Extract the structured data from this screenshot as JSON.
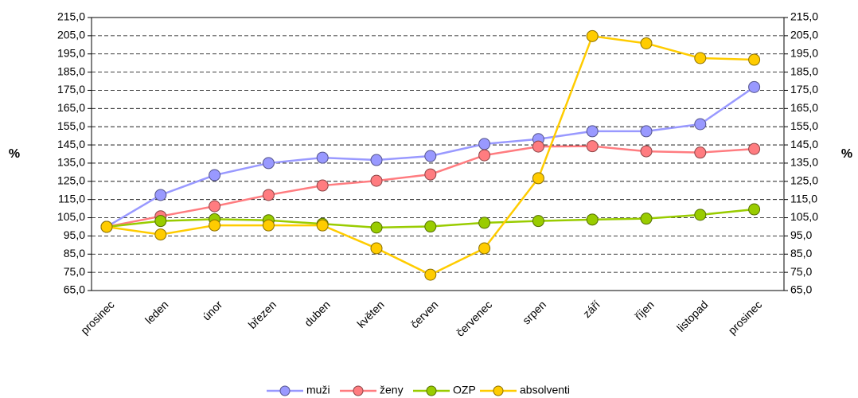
{
  "chart_data": {
    "type": "line",
    "y_label": "%",
    "y2_label": "%",
    "categories": [
      "prosinec",
      "leden",
      "únor",
      "březen",
      "duben",
      "květen",
      "červen",
      "červenec",
      "srpen",
      "září",
      "říjen",
      "listopad",
      "prosinec"
    ],
    "series": [
      {
        "name": "muži",
        "color": "#9999ff",
        "values": [
          100,
          117.5,
          128.4,
          135,
          138,
          136.7,
          138.9,
          145.5,
          148.2,
          152.5,
          152.5,
          156.4,
          176.8
        ]
      },
      {
        "name": "ženy",
        "color": "#ff7c80",
        "values": [
          100,
          105.8,
          111.3,
          117.5,
          122.7,
          125.3,
          128.8,
          139.3,
          144.1,
          144.3,
          141.5,
          140.8,
          142.8
        ]
      },
      {
        "name": "OZP",
        "color": "#99cc00",
        "values": [
          100,
          103.2,
          104.2,
          103.6,
          101.6,
          99.6,
          100.2,
          102.2,
          103.2,
          104,
          104.5,
          106.6,
          109.6
        ]
      },
      {
        "name": "absolventi",
        "color": "#ffcc00",
        "values": [
          100,
          95.8,
          100.8,
          100.8,
          100.8,
          88.2,
          73.7,
          88.2,
          126.7,
          204.8,
          200.8,
          192.7,
          191.8
        ]
      }
    ],
    "ylim": [
      65,
      215
    ],
    "yticks": [
      {
        "value": 65,
        "label": "65,0"
      },
      {
        "value": 75,
        "label": "75,0"
      },
      {
        "value": 85,
        "label": "85,0"
      },
      {
        "value": 95,
        "label": "95,0"
      },
      {
        "value": 105,
        "label": "105,0"
      },
      {
        "value": 115,
        "label": "115,0"
      },
      {
        "value": 125,
        "label": "125,0"
      },
      {
        "value": 135,
        "label": "135,0"
      },
      {
        "value": 145,
        "label": "145,0"
      },
      {
        "value": 155,
        "label": "155,0"
      },
      {
        "value": 165,
        "label": "165,0"
      },
      {
        "value": 175,
        "label": "175,0"
      },
      {
        "value": 185,
        "label": "185,0"
      },
      {
        "value": 195,
        "label": "195,0"
      },
      {
        "value": 205,
        "label": "205,0"
      },
      {
        "value": 215,
        "label": "215,0"
      }
    ],
    "y2lim": [
      65,
      215
    ],
    "y2ticks": [
      {
        "value": 65,
        "label": "65,0"
      },
      {
        "value": 75,
        "label": "75,0"
      },
      {
        "value": 85,
        "label": "85,0"
      },
      {
        "value": 95,
        "label": "95,0"
      },
      {
        "value": 105,
        "label": "105,0"
      },
      {
        "value": 115,
        "label": "115,0"
      },
      {
        "value": 125,
        "label": "125,0"
      },
      {
        "value": 135,
        "label": "135,0"
      },
      {
        "value": 145,
        "label": "145,0"
      },
      {
        "value": 155,
        "label": "155,0"
      },
      {
        "value": 165,
        "label": "165,0"
      },
      {
        "value": 175,
        "label": "175,0"
      },
      {
        "value": 185,
        "label": "185,0"
      },
      {
        "value": 195,
        "label": "195,0"
      },
      {
        "value": 205,
        "label": "205,0"
      },
      {
        "value": 215,
        "label": "215,0"
      }
    ],
    "grid": true,
    "legend": "bottom"
  }
}
